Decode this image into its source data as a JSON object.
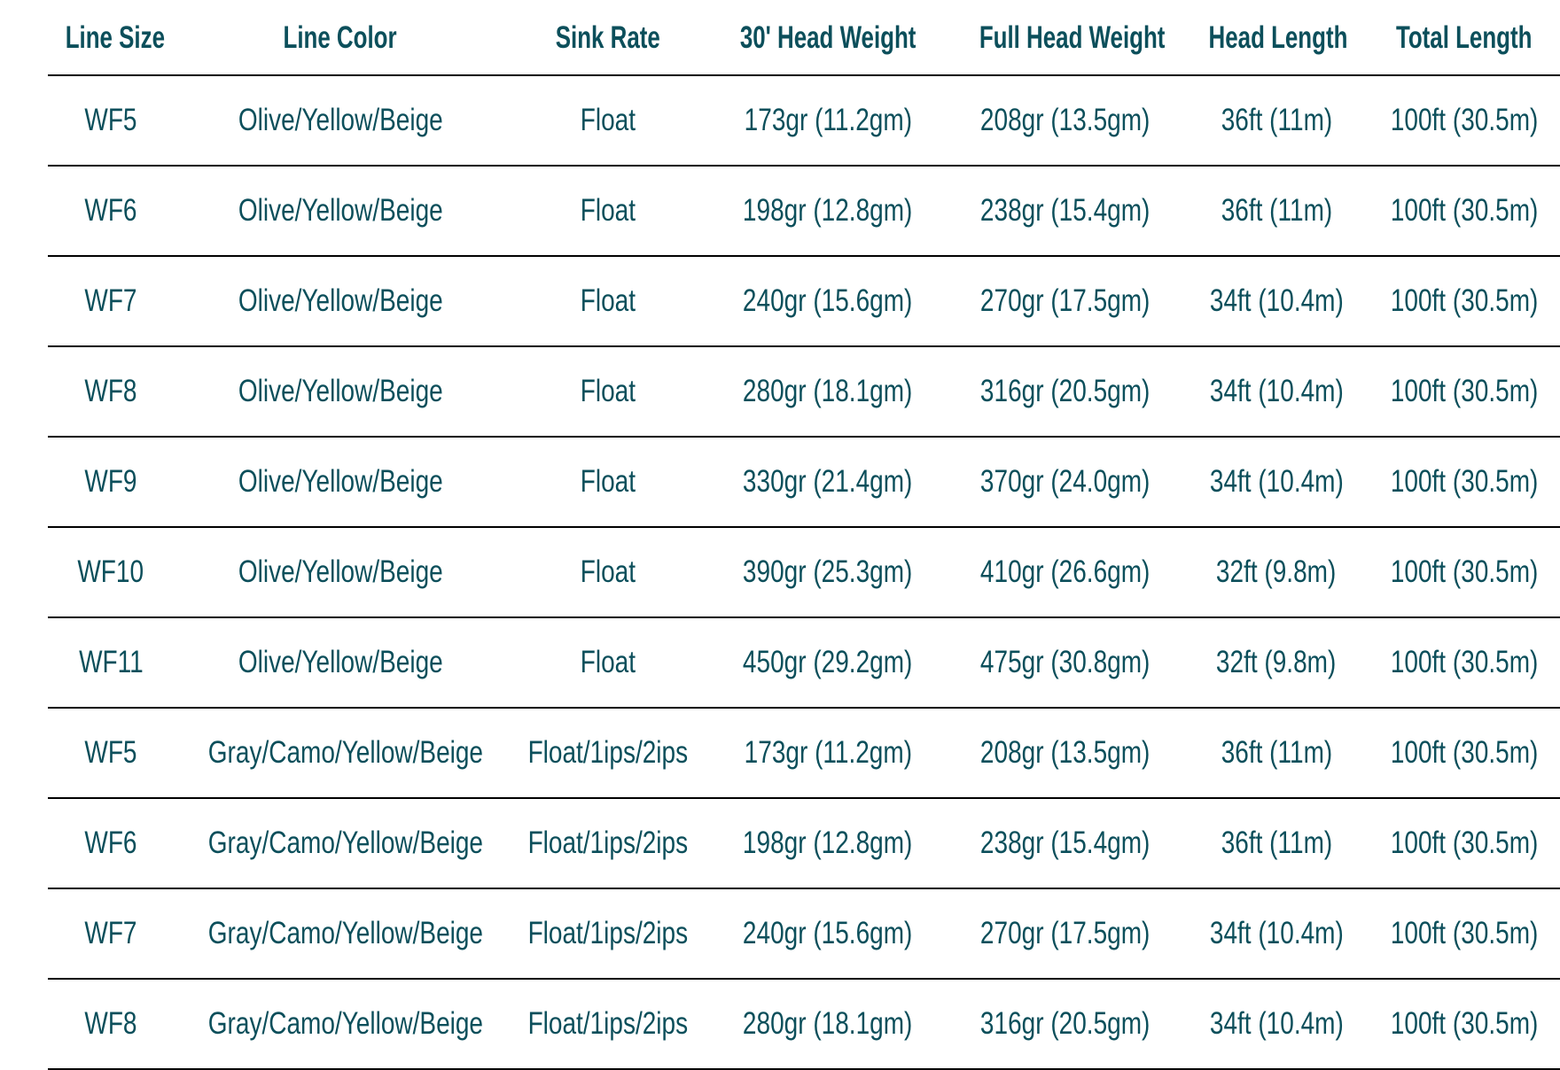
{
  "table": {
    "headers": [
      "Line Size",
      "Line Color",
      "Sink Rate",
      "30' Head Weight",
      "Full Head Weight",
      "Head Length",
      "Total Length"
    ],
    "rows": [
      [
        "WF5",
        "Olive/Yellow/Beige",
        "Float",
        "173gr (11.2gm)",
        "208gr (13.5gm)",
        "36ft (11m)",
        "100ft (30.5m)"
      ],
      [
        "WF6",
        "Olive/Yellow/Beige",
        "Float",
        "198gr (12.8gm)",
        "238gr (15.4gm)",
        "36ft (11m)",
        "100ft (30.5m)"
      ],
      [
        "WF7",
        "Olive/Yellow/Beige",
        "Float",
        "240gr (15.6gm)",
        "270gr (17.5gm)",
        "34ft (10.4m)",
        "100ft (30.5m)"
      ],
      [
        "WF8",
        "Olive/Yellow/Beige",
        "Float",
        "280gr (18.1gm)",
        "316gr (20.5gm)",
        "34ft (10.4m)",
        "100ft (30.5m)"
      ],
      [
        "WF9",
        "Olive/Yellow/Beige",
        "Float",
        "330gr (21.4gm)",
        "370gr (24.0gm)",
        "34ft (10.4m)",
        "100ft (30.5m)"
      ],
      [
        "WF10",
        "Olive/Yellow/Beige",
        "Float",
        "390gr (25.3gm)",
        "410gr (26.6gm)",
        "32ft (9.8m)",
        "100ft (30.5m)"
      ],
      [
        "WF11",
        "Olive/Yellow/Beige",
        "Float",
        "450gr (29.2gm)",
        "475gr (30.8gm)",
        "32ft (9.8m)",
        "100ft (30.5m)"
      ],
      [
        "WF5",
        "Gray/Camo/Yellow/Beige",
        "Float/1ips/2ips",
        "173gr (11.2gm)",
        "208gr (13.5gm)",
        "36ft (11m)",
        "100ft (30.5m)"
      ],
      [
        "WF6",
        "Gray/Camo/Yellow/Beige",
        "Float/1ips/2ips",
        "198gr (12.8gm)",
        "238gr (15.4gm)",
        "36ft (11m)",
        "100ft (30.5m)"
      ],
      [
        "WF7",
        "Gray/Camo/Yellow/Beige",
        "Float/1ips/2ips",
        "240gr (15.6gm)",
        "270gr (17.5gm)",
        "34ft (10.4m)",
        "100ft (30.5m)"
      ],
      [
        "WF8",
        "Gray/Camo/Yellow/Beige",
        "Float/1ips/2ips",
        "280gr (18.1gm)",
        "316gr (20.5gm)",
        "34ft (10.4m)",
        "100ft (30.5m)"
      ]
    ]
  },
  "colors": {
    "text": "#0c4f5b",
    "rule": "#000000"
  }
}
